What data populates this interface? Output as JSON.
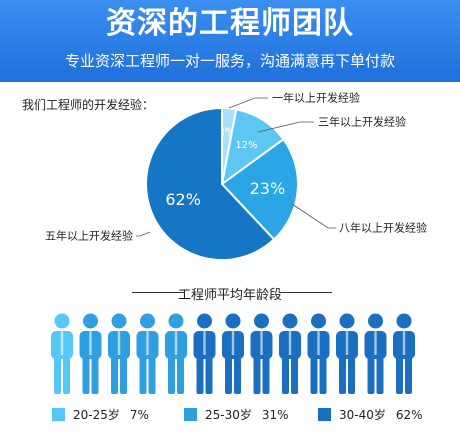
{
  "header": {
    "title": "资深的工程师团队",
    "subtitle": "专业资深工程师一对一服务，沟通满意再下单付款"
  },
  "chart_data": [
    {
      "type": "pie",
      "title": "我们工程师的开发经验：",
      "slices": [
        {
          "label": "一年以上开发经验",
          "value": 3,
          "display": "3%",
          "color": "#a9e0f8"
        },
        {
          "label": "三年以上开发经验",
          "value": 12,
          "display": "12%",
          "color": "#5ec6f2"
        },
        {
          "label": "八年以上开发经验",
          "value": 23,
          "display": "23%",
          "color": "#2aa6e6"
        },
        {
          "label": "五年以上开发经验",
          "value": 62,
          "display": "62%",
          "color": "#1476c4"
        }
      ]
    },
    {
      "type": "bar",
      "title": "工程师平均年龄段",
      "categories": [
        "20-25岁",
        "25-30岁",
        "30-40岁"
      ],
      "values": [
        7,
        31,
        62
      ],
      "display": [
        "7%",
        "31%",
        "62%"
      ],
      "colors": [
        "#56c8f5",
        "#2f9fe2",
        "#1a6fc0"
      ]
    }
  ]
}
